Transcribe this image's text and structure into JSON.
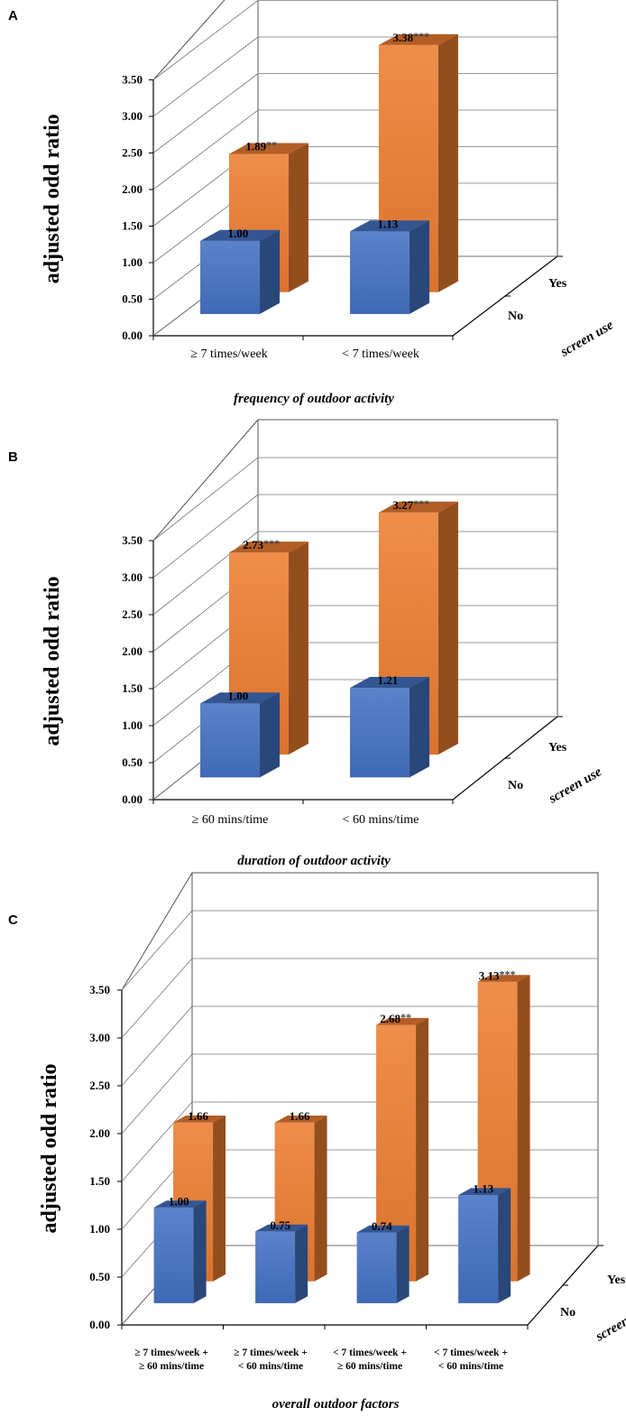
{
  "colors": {
    "no": "#4472c4",
    "yes": "#ed7d31"
  },
  "chart_data": [
    {
      "panel": "A",
      "type": "bar",
      "ylabel": "adjusted odd ratio",
      "xlabel": "frequency of outdoor activity",
      "zlabel": "screen use",
      "ylim": [
        0,
        3.5
      ],
      "yticks": [
        "0.00",
        "0.50",
        "1.00",
        "1.50",
        "2.00",
        "2.50",
        "3.00",
        "3.50"
      ],
      "categories": [
        [
          "≥ 7 times/week"
        ],
        [
          "< 7 times/week"
        ]
      ],
      "series": [
        {
          "name": "No",
          "values": [
            1.0,
            1.13
          ],
          "labels": [
            "1.00",
            "1.13"
          ],
          "sig": [
            "",
            ""
          ]
        },
        {
          "name": "Yes",
          "values": [
            1.89,
            3.38
          ],
          "labels": [
            "1.89",
            "3.38"
          ],
          "sig": [
            "**",
            "***"
          ]
        }
      ]
    },
    {
      "panel": "B",
      "type": "bar",
      "ylabel": "adjusted odd ratio",
      "xlabel": "duration of outdoor activity",
      "zlabel": "screen use",
      "ylim": [
        0,
        3.5
      ],
      "yticks": [
        "0.00",
        "0.50",
        "1.00",
        "1.50",
        "2.00",
        "2.50",
        "3.00",
        "3.50"
      ],
      "categories": [
        [
          "≥ 60 mins/time"
        ],
        [
          "< 60 mins/time"
        ]
      ],
      "series": [
        {
          "name": "No",
          "values": [
            1.0,
            1.21
          ],
          "labels": [
            "1.00",
            "1.21"
          ],
          "sig": [
            "",
            ""
          ]
        },
        {
          "name": "Yes",
          "values": [
            2.73,
            3.27
          ],
          "labels": [
            "2.73",
            "3.27"
          ],
          "sig": [
            "***",
            "***"
          ]
        }
      ]
    },
    {
      "panel": "C",
      "type": "bar",
      "ylabel": "adjusted odd ratio",
      "xlabel": "overall outdoor factors",
      "zlabel": "screen use",
      "ylim": [
        0,
        3.5
      ],
      "yticks": [
        "0.00",
        "0.50",
        "1.00",
        "1.50",
        "2.00",
        "2.50",
        "3.00",
        "3.50"
      ],
      "categories": [
        [
          "≥ 7 times/week +",
          "≥ 60 mins/time"
        ],
        [
          "≥ 7 times/week +",
          "< 60 mins/time"
        ],
        [
          "< 7 times/week +",
          "≥ 60 mins/time"
        ],
        [
          "< 7 times/week +",
          "< 60 mins/time"
        ]
      ],
      "series": [
        {
          "name": "No",
          "values": [
            1.0,
            0.75,
            0.74,
            1.13
          ],
          "labels": [
            "1.00",
            "0.75",
            "0.74",
            "1.13"
          ],
          "sig": [
            "",
            "",
            "",
            ""
          ]
        },
        {
          "name": "Yes",
          "values": [
            1.66,
            1.66,
            2.68,
            3.13
          ],
          "labels": [
            "1.66",
            "1.66",
            "2.68",
            "3.13"
          ],
          "sig": [
            "",
            "",
            "**",
            "***"
          ]
        }
      ]
    }
  ]
}
